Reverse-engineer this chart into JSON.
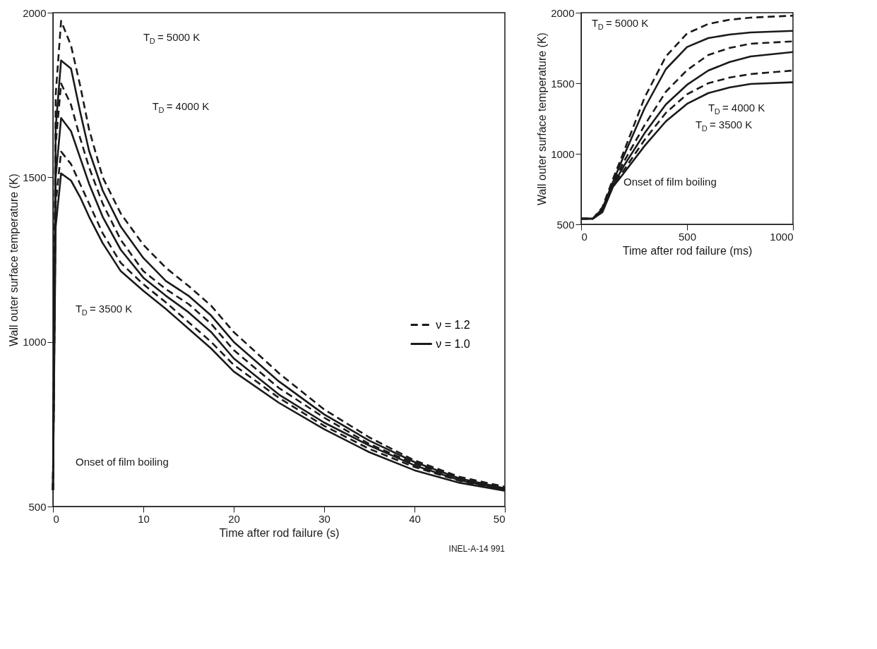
{
  "chart_data": [
    {
      "type": "line",
      "xlabel": "Time after rod failure (s)",
      "ylabel": "Wall outer surface temperature (K)",
      "xlim": [
        0,
        50
      ],
      "ylim": [
        500,
        2000
      ],
      "xticks": [
        0,
        10,
        20,
        30,
        40,
        50
      ],
      "yticks": [
        500,
        1000,
        1500,
        2000
      ],
      "legend": "bottom right",
      "marker": "none",
      "x": [
        0,
        0.3,
        0.9,
        2,
        3,
        4,
        5.5,
        7.5,
        10,
        12.5,
        15,
        17.5,
        20,
        25,
        30,
        35,
        40,
        45,
        50
      ],
      "series": [
        {
          "name": "ν = 1.2",
          "color": "#1a1a1a",
          "line_style": "dashed",
          "values": [
            550,
            1750,
            1975,
            1900,
            1780,
            1645,
            1500,
            1390,
            1295,
            1225,
            1170,
            1110,
            1030,
            905,
            795,
            710,
            640,
            590,
            560
          ]
        },
        {
          "name": "ν = 1.0",
          "color": "#1a1a1a",
          "line_style": "solid",
          "values": [
            550,
            1650,
            1855,
            1830,
            1700,
            1580,
            1460,
            1350,
            1255,
            1185,
            1140,
            1080,
            1000,
            880,
            780,
            700,
            635,
            585,
            555
          ]
        },
        {
          "color": "#1a1a1a",
          "line_style": "dashed",
          "values": [
            550,
            1600,
            1785,
            1720,
            1620,
            1530,
            1420,
            1310,
            1215,
            1160,
            1115,
            1055,
            975,
            860,
            770,
            690,
            630,
            585,
            555
          ]
        },
        {
          "color": "#1a1a1a",
          "line_style": "solid",
          "values": [
            550,
            1500,
            1680,
            1640,
            1560,
            1480,
            1380,
            1280,
            1195,
            1140,
            1090,
            1030,
            950,
            840,
            755,
            685,
            625,
            580,
            552
          ]
        },
        {
          "color": "#1a1a1a",
          "line_style": "dashed",
          "values": [
            550,
            1420,
            1578,
            1540,
            1480,
            1420,
            1330,
            1240,
            1175,
            1120,
            1060,
            1000,
            930,
            830,
            745,
            675,
            620,
            578,
            550
          ]
        },
        {
          "color": "#1a1a1a",
          "line_style": "solid",
          "values": [
            550,
            1350,
            1512,
            1490,
            1440,
            1380,
            1300,
            1215,
            1155,
            1100,
            1040,
            980,
            910,
            815,
            735,
            665,
            610,
            572,
            548
          ]
        }
      ],
      "annotations": [
        "T$_{D}$ = 5000 K",
        "T$_{D}$ = 4000 K",
        "T$_{D}$ = 3500 K",
        "Onset of film boiling",
        "INEL-A-14 991"
      ]
    },
    {
      "type": "line",
      "xlabel": "Time after rod failure (ms)",
      "ylabel": "Wall outer surface temperature (K)",
      "xlim": [
        0,
        1000
      ],
      "ylim": [
        500,
        2000
      ],
      "xticks": [
        0,
        500,
        1000
      ],
      "yticks": [
        500,
        1000,
        1500,
        2000
      ],
      "marker": "none",
      "x": [
        0,
        55,
        100,
        150,
        200,
        300,
        400,
        500,
        600,
        700,
        800,
        1000
      ],
      "series": [
        {
          "color": "#1a1a1a",
          "line_style": "dashed",
          "values": [
            540,
            540,
            620,
            820,
            1010,
            1400,
            1690,
            1853,
            1920,
            1950,
            1965,
            1979
          ]
        },
        {
          "color": "#1a1a1a",
          "line_style": "solid",
          "values": [
            540,
            540,
            610,
            800,
            980,
            1325,
            1600,
            1757,
            1820,
            1845,
            1860,
            1871
          ]
        },
        {
          "color": "#1a1a1a",
          "line_style": "dashed",
          "values": [
            540,
            540,
            600,
            785,
            940,
            1204,
            1440,
            1593,
            1700,
            1750,
            1780,
            1797
          ]
        },
        {
          "color": "#1a1a1a",
          "line_style": "solid",
          "values": [
            540,
            540,
            595,
            775,
            910,
            1147,
            1350,
            1489,
            1590,
            1650,
            1690,
            1721
          ]
        },
        {
          "color": "#1a1a1a",
          "line_style": "dashed",
          "values": [
            540,
            540,
            590,
            770,
            880,
            1100,
            1290,
            1422,
            1500,
            1540,
            1565,
            1590
          ]
        },
        {
          "color": "#1a1a1a",
          "line_style": "solid",
          "values": [
            540,
            540,
            585,
            765,
            860,
            1057,
            1230,
            1354,
            1430,
            1470,
            1495,
            1507
          ]
        }
      ],
      "annotations": [
        "T$_{D}$ = 5000 K",
        "T$_{D}$ = 4000 K",
        "T$_{D}$ = 3500 K",
        "Onset of film boiling"
      ]
    }
  ]
}
